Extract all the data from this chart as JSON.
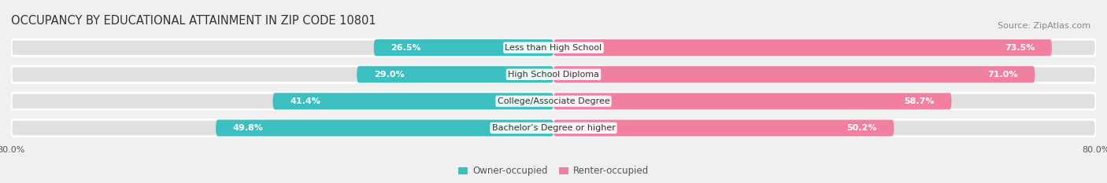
{
  "title": "OCCUPANCY BY EDUCATIONAL ATTAINMENT IN ZIP CODE 10801",
  "source": "Source: ZipAtlas.com",
  "categories": [
    "Less than High School",
    "High School Diploma",
    "College/Associate Degree",
    "Bachelor’s Degree or higher"
  ],
  "owner_pct": [
    26.5,
    29.0,
    41.4,
    49.8
  ],
  "renter_pct": [
    73.5,
    71.0,
    58.7,
    50.2
  ],
  "owner_color": "#3bbfc0",
  "renter_color": "#f07fa0",
  "bg_color": "#f0f0f0",
  "bar_bg_color": "#e0e0e0",
  "bar_bg_edge_color": "#ffffff",
  "xlim_left": -80,
  "xlim_right": 80,
  "bar_height": 0.62,
  "title_fontsize": 10.5,
  "source_fontsize": 8,
  "label_fontsize": 8,
  "tick_fontsize": 8,
  "legend_fontsize": 8.5
}
